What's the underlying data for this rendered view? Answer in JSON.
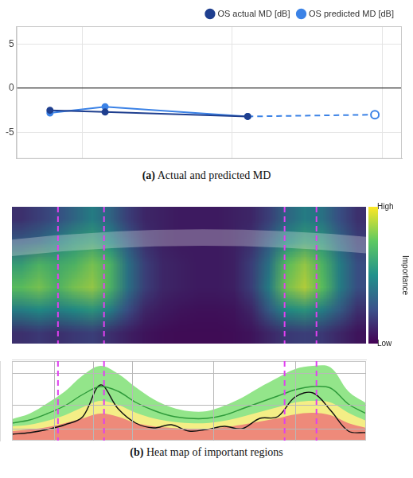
{
  "chart_data": [
    {
      "type": "line",
      "caption": "(a) Actual and predicted MD",
      "xlim": [
        0,
        10
      ],
      "xticks": [
        1.7,
        5.6,
        9.5
      ],
      "ylim": [
        -8,
        7
      ],
      "yticks": [
        -5,
        0,
        5
      ],
      "grid": true,
      "tick_labels": "y",
      "legend": "top-right",
      "series": [
        {
          "name": "OS actual MD [dB]",
          "color": "#1f3f8f",
          "marker": "circle",
          "line_style": "solid",
          "x": [
            0.87,
            2.3,
            6.0
          ],
          "values": [
            -2.5,
            -2.7,
            -3.2
          ]
        },
        {
          "name": "OS predicted MD [dB]",
          "color": "#3b82e6",
          "marker": "circle",
          "line_style": "solid",
          "x": [
            0.87,
            2.3,
            6.0
          ],
          "values": [
            -2.8,
            -2.1,
            -3.2
          ]
        },
        {
          "name": "OS predicted MD [dB]",
          "color": "#3b82e6",
          "marker": "open_circle",
          "line_style": "dashed",
          "x": [
            6.0,
            9.3
          ],
          "values": [
            -3.2,
            -3.0
          ]
        }
      ]
    },
    {
      "type": "heatmap",
      "caption": "(b) Heat map of important regions",
      "xlim": [
        0,
        100
      ],
      "cells": [
        [
          0.15,
          0.2,
          0.25,
          0.35,
          0.45,
          0.35,
          0.2,
          0.12,
          0.1,
          0.08,
          0.08,
          0.08,
          0.1,
          0.12,
          0.2,
          0.35,
          0.45,
          0.4,
          0.25,
          0.15
        ],
        [
          0.3,
          0.35,
          0.45,
          0.55,
          0.6,
          0.5,
          0.3,
          0.15,
          0.1,
          0.08,
          0.08,
          0.08,
          0.1,
          0.15,
          0.3,
          0.5,
          0.6,
          0.55,
          0.35,
          0.2
        ],
        [
          0.6,
          0.7,
          0.65,
          0.7,
          0.8,
          0.7,
          0.4,
          0.2,
          0.12,
          0.1,
          0.08,
          0.08,
          0.1,
          0.2,
          0.4,
          0.75,
          0.85,
          0.7,
          0.45,
          0.25
        ],
        [
          0.75,
          0.8,
          0.7,
          0.8,
          0.85,
          0.7,
          0.4,
          0.2,
          0.12,
          0.1,
          0.08,
          0.08,
          0.1,
          0.2,
          0.45,
          0.8,
          0.9,
          0.75,
          0.45,
          0.25
        ],
        [
          0.45,
          0.5,
          0.45,
          0.5,
          0.55,
          0.45,
          0.25,
          0.12,
          0.08,
          0.06,
          0.05,
          0.05,
          0.06,
          0.12,
          0.3,
          0.5,
          0.55,
          0.45,
          0.3,
          0.15
        ],
        [
          0.15,
          0.18,
          0.15,
          0.18,
          0.2,
          0.15,
          0.1,
          0.06,
          0.04,
          0.03,
          0.03,
          0.03,
          0.04,
          0.06,
          0.12,
          0.18,
          0.2,
          0.18,
          0.12,
          0.06
        ]
      ],
      "colorbar": {
        "title": "Importance",
        "range": [
          0,
          1
        ],
        "ticks": [
          {
            "value": 0,
            "label": "Low"
          },
          {
            "value": 1,
            "label": "High"
          }
        ]
      },
      "vlines": [
        13,
        26,
        77,
        86
      ],
      "profile": {
        "type": "line",
        "x": [
          0,
          5,
          10,
          15,
          20,
          25,
          30,
          35,
          40,
          45,
          50,
          55,
          60,
          65,
          70,
          75,
          80,
          85,
          90,
          95,
          100
        ],
        "xlim": [
          0,
          100
        ],
        "xticks": [
          12,
          23,
          34,
          57,
          80
        ],
        "ylim": [
          0,
          100
        ],
        "yticks": [
          15,
          45,
          85
        ],
        "grid": true,
        "tick_labels": false,
        "series": [
          {
            "type": "area",
            "color": "#93e58a",
            "values": [
              27,
              34,
              47,
              62,
              82,
              94,
              84,
              67,
              52,
              42,
              37,
              37,
              44,
              54,
              67,
              79,
              90,
              94,
              92,
              62,
              47
            ]
          },
          {
            "type": "area",
            "color": "#f4ee86",
            "values": [
              18,
              20,
              25,
              32,
              42,
              50,
              45,
              35,
              28,
              24,
              22,
              22,
              25,
              30,
              36,
              42,
              48,
              50,
              48,
              35,
              25
            ]
          },
          {
            "type": "area",
            "color": "#ee8a7a",
            "values": [
              12,
              14,
              17,
              22,
              28,
              34,
              30,
              22,
              18,
              16,
              15,
              15,
              17,
              20,
              24,
              28,
              33,
              35,
              32,
              22,
              16
            ]
          },
          {
            "type": "line",
            "color": "#2e9a3a",
            "values": [
              22,
              26,
              34,
              44,
              58,
              68,
              62,
              48,
              38,
              31,
              28,
              28,
              32,
              40,
              48,
              56,
              64,
              68,
              66,
              46,
              34
            ]
          },
          {
            "type": "line",
            "color": "#111111",
            "values": [
              8,
              10,
              14,
              20,
              30,
              70,
              40,
              22,
              16,
              20,
              12,
              14,
              18,
              15,
              28,
              30,
              55,
              60,
              38,
              12,
              10
            ]
          }
        ]
      }
    }
  ]
}
